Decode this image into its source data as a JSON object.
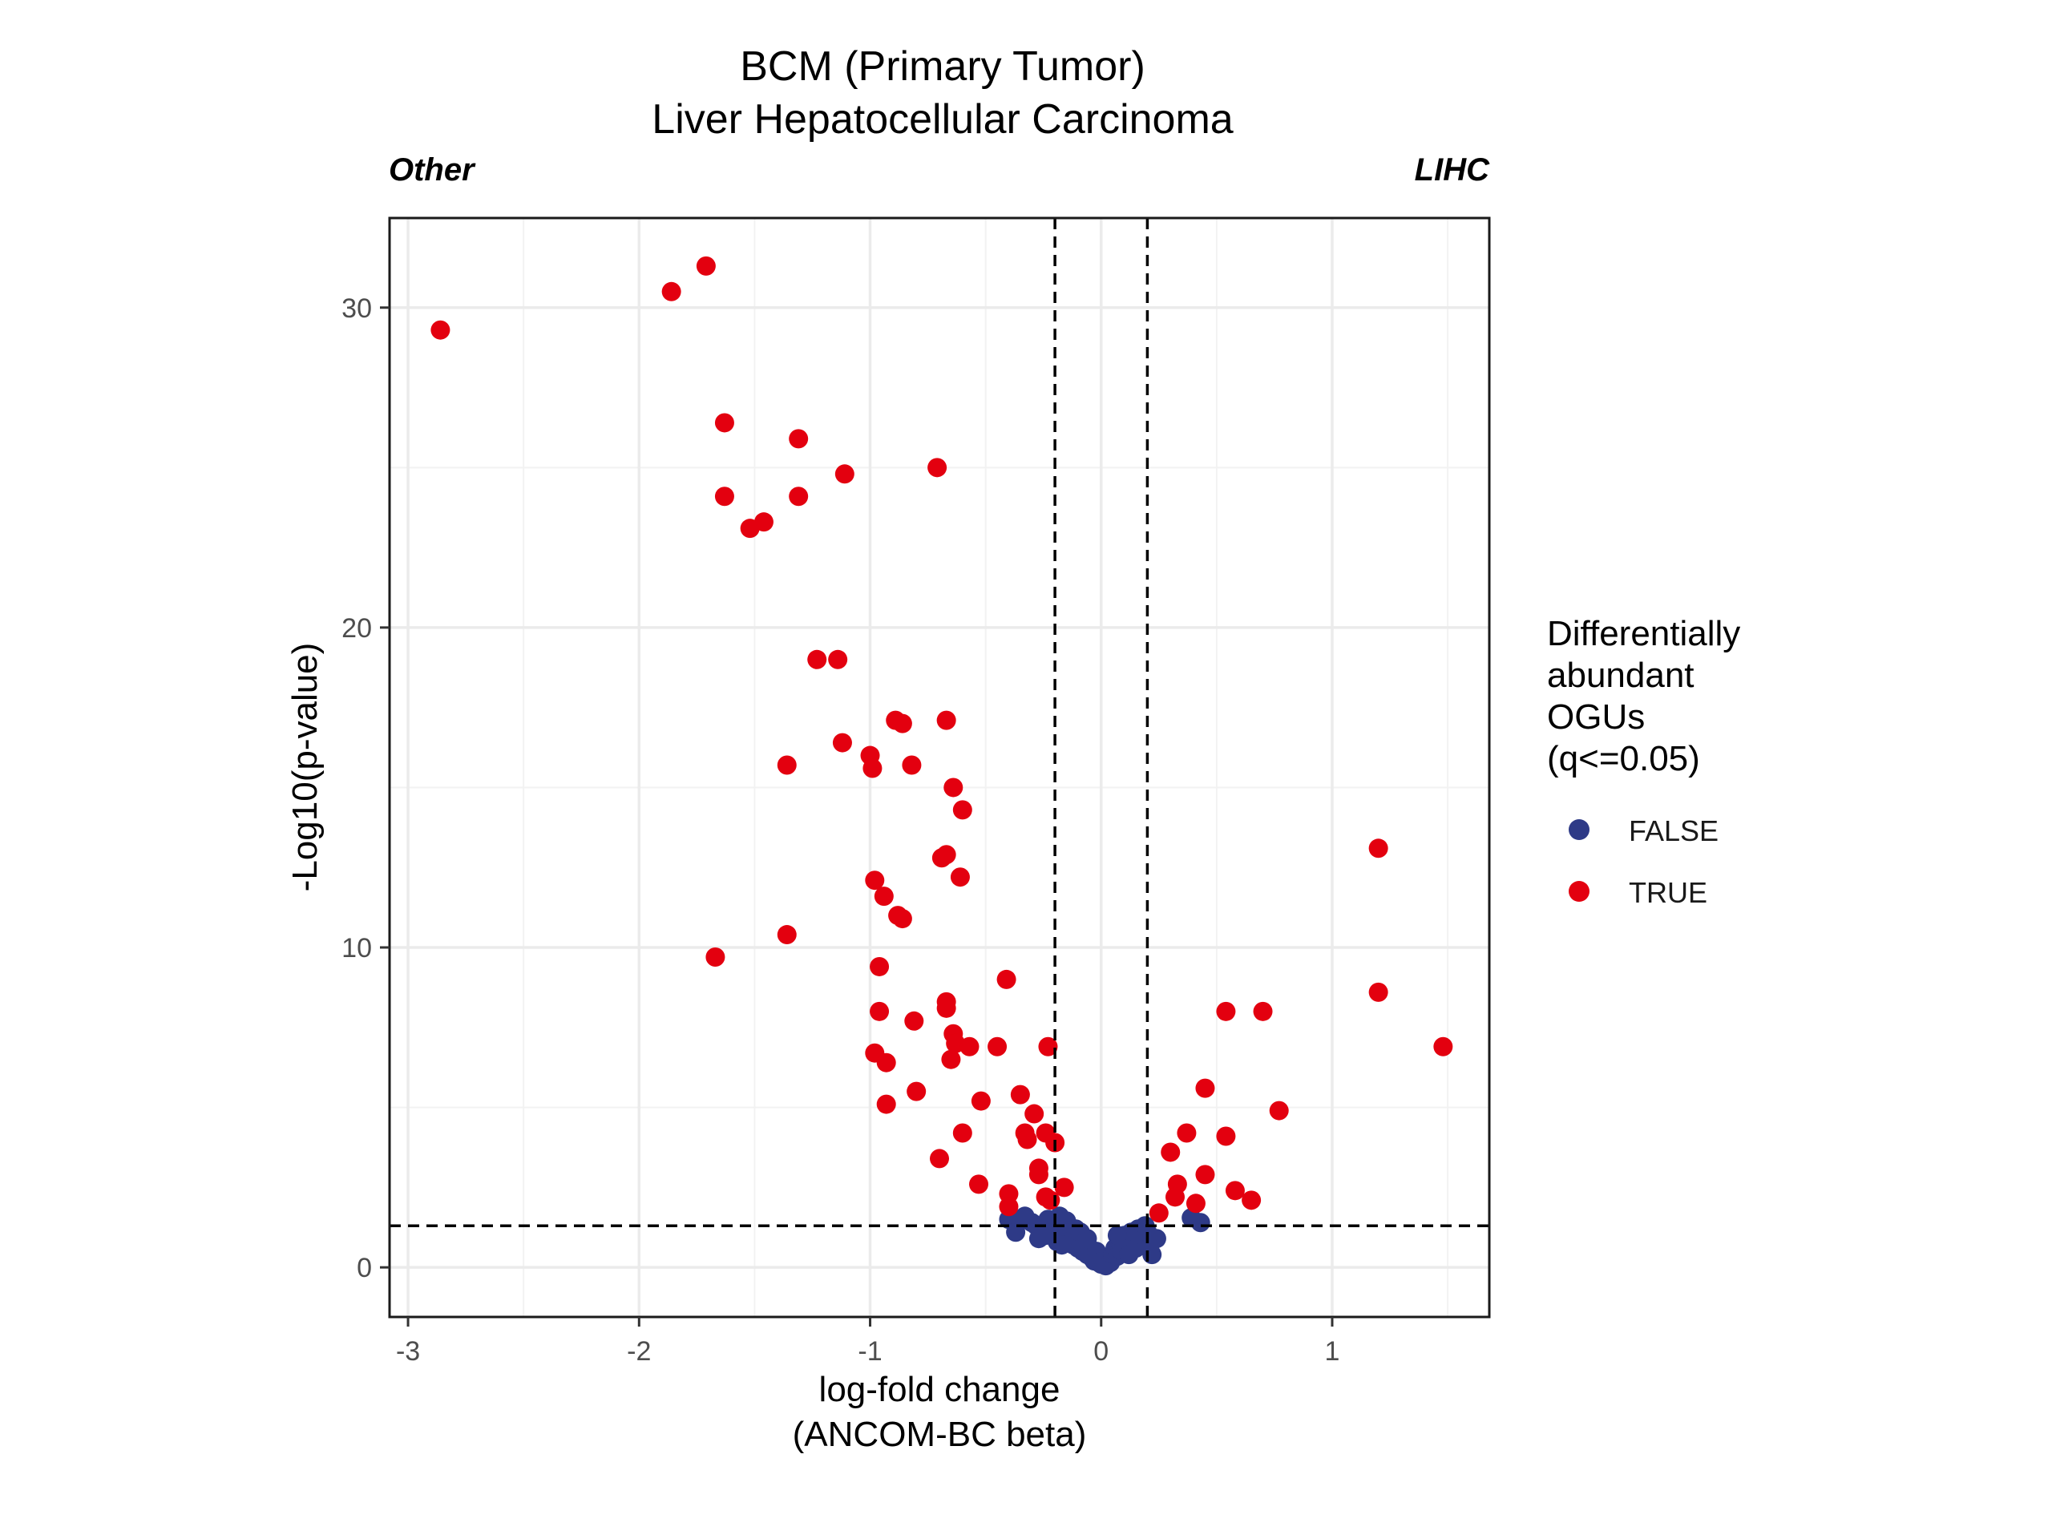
{
  "chart_data": {
    "type": "scatter",
    "title": "BCM (Primary Tumor)",
    "subtitle": "Liver Hepatocellular Carcinoma",
    "corner_labels": {
      "left": "Other",
      "right": "LIHC"
    },
    "xlabel_line1": "log-fold change",
    "xlabel_line2": "(ANCOM-BC beta)",
    "ylabel": "-Log10(p-value)",
    "xlim": [
      -3.08,
      1.68
    ],
    "ylim": [
      -1.55,
      32.8
    ],
    "x_ticks": [
      -3,
      -2,
      -1,
      0,
      1
    ],
    "x_tick_labels": [
      "-3",
      "-2",
      "-1",
      "0",
      "1"
    ],
    "y_ticks": [
      0,
      10,
      20,
      30
    ],
    "y_tick_labels": [
      "0",
      "10",
      "20",
      "30"
    ],
    "grid": true,
    "thresholds": {
      "x": [
        -0.2,
        0.2
      ],
      "y": 1.3
    },
    "legend": {
      "title_lines": [
        "Differentially",
        "abundant",
        "OGUs",
        "(q<=0.05)"
      ],
      "position": "right",
      "entries": [
        {
          "label": "FALSE",
          "color": "#2E3A87"
        },
        {
          "label": "TRUE",
          "color": "#E3000F"
        }
      ]
    },
    "series": [
      {
        "name": "FALSE",
        "color": "#2E3A87",
        "points": [
          [
            -0.4,
            1.5
          ],
          [
            -0.37,
            1.1
          ],
          [
            -0.35,
            1.5
          ],
          [
            -0.33,
            1.6
          ],
          [
            -0.3,
            1.4
          ],
          [
            -0.28,
            1.3
          ],
          [
            -0.26,
            1.2
          ],
          [
            -0.24,
            1.0
          ],
          [
            -0.22,
            1.4
          ],
          [
            -0.2,
            1.3
          ],
          [
            -0.18,
            1.6
          ],
          [
            -0.16,
            1.2
          ],
          [
            -0.15,
            1.45
          ],
          [
            -0.14,
            1.0
          ],
          [
            -0.13,
            0.9
          ],
          [
            -0.12,
            0.7
          ],
          [
            -0.11,
            1.2
          ],
          [
            -0.1,
            0.6
          ],
          [
            -0.09,
            1.1
          ],
          [
            -0.08,
            0.5
          ],
          [
            -0.07,
            0.8
          ],
          [
            -0.06,
            0.4
          ],
          [
            -0.05,
            0.6
          ],
          [
            -0.04,
            0.3
          ],
          [
            -0.03,
            0.2
          ],
          [
            -0.02,
            0.5
          ],
          [
            -0.01,
            0.15
          ],
          [
            0.0,
            0.1
          ],
          [
            0.01,
            0.2
          ],
          [
            0.02,
            0.05
          ],
          [
            0.03,
            0.3
          ],
          [
            0.04,
            0.15
          ],
          [
            0.05,
            0.4
          ],
          [
            0.06,
            0.6
          ],
          [
            0.07,
            0.35
          ],
          [
            0.08,
            0.8
          ],
          [
            0.09,
            0.5
          ],
          [
            0.1,
            1.0
          ],
          [
            0.11,
            0.7
          ],
          [
            0.12,
            0.4
          ],
          [
            0.13,
            1.1
          ],
          [
            0.14,
            0.9
          ],
          [
            0.15,
            0.6
          ],
          [
            0.16,
            1.2
          ],
          [
            0.17,
            0.8
          ],
          [
            0.18,
            1.0
          ],
          [
            0.19,
            1.3
          ],
          [
            0.2,
            1.1
          ],
          [
            0.22,
            0.4
          ],
          [
            0.24,
            0.9
          ],
          [
            0.39,
            1.55
          ],
          [
            0.43,
            1.4
          ],
          [
            -0.27,
            0.9
          ],
          [
            -0.19,
            0.8
          ],
          [
            -0.21,
            1.0
          ],
          [
            -0.17,
            0.7
          ],
          [
            -0.23,
            1.5
          ],
          [
            0.21,
            0.6
          ],
          [
            -0.06,
            0.9
          ],
          [
            0.07,
            1.0
          ]
        ]
      },
      {
        "name": "TRUE",
        "color": "#E3000F",
        "points": [
          [
            -2.86,
            29.3
          ],
          [
            -1.86,
            30.5
          ],
          [
            -1.71,
            31.3
          ],
          [
            -1.63,
            26.4
          ],
          [
            -1.63,
            24.1
          ],
          [
            -1.52,
            23.1
          ],
          [
            -1.46,
            23.3
          ],
          [
            -1.31,
            25.9
          ],
          [
            -1.31,
            24.1
          ],
          [
            -1.11,
            24.8
          ],
          [
            -0.71,
            25.0
          ],
          [
            -1.23,
            19.0
          ],
          [
            -1.14,
            19.0
          ],
          [
            -1.12,
            16.4
          ],
          [
            -0.89,
            17.1
          ],
          [
            -0.86,
            17.0
          ],
          [
            -0.67,
            17.1
          ],
          [
            -1.0,
            16.0
          ],
          [
            -0.99,
            15.6
          ],
          [
            -0.82,
            15.7
          ],
          [
            -0.64,
            15.0
          ],
          [
            -0.6,
            14.3
          ],
          [
            -1.36,
            15.7
          ],
          [
            -0.69,
            12.8
          ],
          [
            -0.67,
            12.9
          ],
          [
            -0.61,
            12.2
          ],
          [
            -0.98,
            12.1
          ],
          [
            -0.94,
            11.6
          ],
          [
            -0.88,
            11.0
          ],
          [
            -0.86,
            10.9
          ],
          [
            -1.36,
            10.4
          ],
          [
            -1.67,
            9.7
          ],
          [
            -0.96,
            9.4
          ],
          [
            -0.41,
            9.0
          ],
          [
            -0.67,
            8.3
          ],
          [
            -0.67,
            8.1
          ],
          [
            -0.96,
            8.0
          ],
          [
            -0.81,
            7.7
          ],
          [
            -0.64,
            7.3
          ],
          [
            -0.63,
            7.0
          ],
          [
            -0.57,
            6.9
          ],
          [
            -0.65,
            6.5
          ],
          [
            -0.45,
            6.9
          ],
          [
            -0.23,
            6.9
          ],
          [
            -0.98,
            6.7
          ],
          [
            -0.93,
            6.4
          ],
          [
            -0.8,
            5.5
          ],
          [
            -0.52,
            5.2
          ],
          [
            -0.93,
            5.1
          ],
          [
            -0.35,
            5.4
          ],
          [
            -0.29,
            4.8
          ],
          [
            -0.33,
            4.2
          ],
          [
            -0.32,
            4.0
          ],
          [
            -0.24,
            4.2
          ],
          [
            -0.2,
            3.9
          ],
          [
            -0.6,
            4.2
          ],
          [
            -0.7,
            3.4
          ],
          [
            -0.27,
            3.1
          ],
          [
            -0.27,
            2.9
          ],
          [
            -0.53,
            2.6
          ],
          [
            -0.16,
            2.5
          ],
          [
            -0.4,
            2.3
          ],
          [
            -0.24,
            2.2
          ],
          [
            -0.22,
            2.1
          ],
          [
            -0.4,
            1.9
          ],
          [
            0.3,
            3.6
          ],
          [
            0.37,
            4.2
          ],
          [
            0.33,
            2.6
          ],
          [
            0.32,
            2.2
          ],
          [
            0.45,
            2.9
          ],
          [
            0.41,
            2.0
          ],
          [
            0.25,
            1.7
          ],
          [
            0.45,
            5.6
          ],
          [
            0.54,
            8.0
          ],
          [
            0.7,
            8.0
          ],
          [
            0.54,
            4.1
          ],
          [
            0.77,
            4.9
          ],
          [
            0.58,
            2.4
          ],
          [
            0.65,
            2.1
          ],
          [
            1.2,
            13.1
          ],
          [
            1.2,
            8.6
          ],
          [
            1.48,
            6.9
          ]
        ]
      }
    ]
  }
}
